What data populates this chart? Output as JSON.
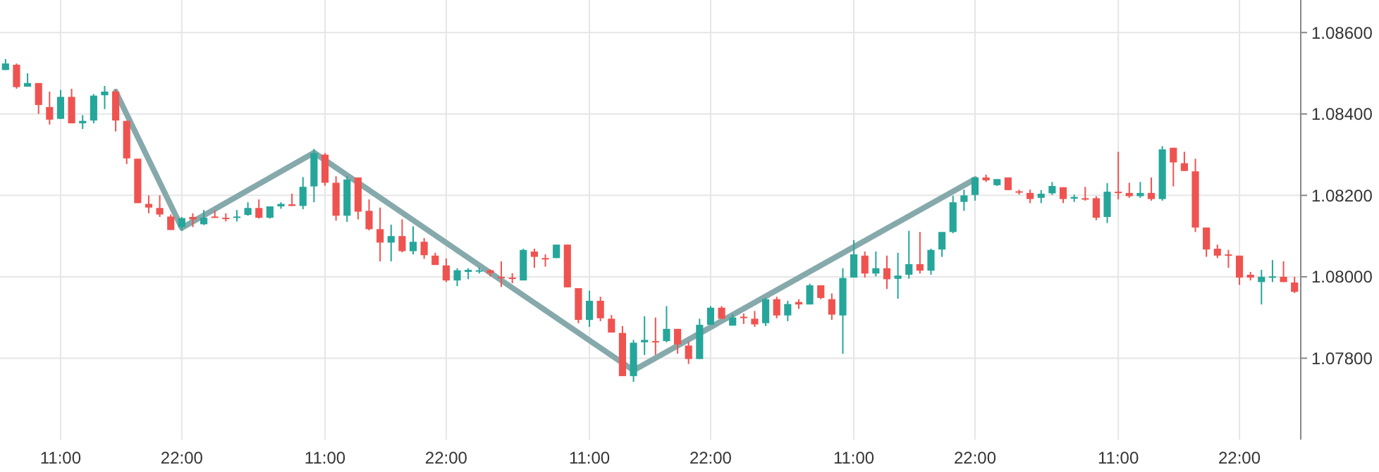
{
  "chart_data": {
    "type": "candlestick",
    "categories": [
      null,
      null,
      null,
      null,
      null,
      "11:00",
      null,
      null,
      null,
      null,
      null,
      null,
      null,
      null,
      null,
      null,
      "22:00",
      null,
      null,
      null,
      null,
      null,
      null,
      null,
      null,
      null,
      null,
      null,
      null,
      "11:00",
      null,
      null,
      null,
      null,
      null,
      null,
      null,
      null,
      null,
      null,
      "22:00",
      null,
      null,
      null,
      null,
      null,
      null,
      null,
      null,
      null,
      null,
      null,
      null,
      "11:00",
      null,
      null,
      null,
      null,
      null,
      null,
      null,
      null,
      null,
      null,
      "22:00",
      null,
      null,
      null,
      null,
      null,
      null,
      null,
      null,
      null,
      null,
      null,
      null,
      "11:00",
      null,
      null,
      null,
      null,
      null,
      null,
      null,
      null,
      null,
      null,
      "22:00",
      null,
      null,
      null,
      null,
      null,
      null,
      null,
      null,
      null,
      null,
      null,
      null,
      "11:00",
      null,
      null,
      null,
      null,
      null,
      null,
      null,
      null,
      null,
      null,
      "22:00",
      null,
      null,
      null,
      null,
      null
    ],
    "ohlc": [
      [
        1.08508,
        1.08535,
        1.08508,
        1.08524
      ],
      [
        1.08521,
        1.08524,
        1.08462,
        1.08466
      ],
      [
        1.08467,
        1.085,
        1.08467,
        1.08476
      ],
      [
        1.08476,
        1.08476,
        1.084,
        1.08422
      ],
      [
        1.08417,
        1.08455,
        1.08374,
        1.08386
      ],
      [
        1.08388,
        1.08459,
        1.08388,
        1.08442
      ],
      [
        1.08442,
        1.08462,
        1.08377,
        1.08377
      ],
      [
        1.08377,
        1.08397,
        1.08363,
        1.08383
      ],
      [
        1.08384,
        1.08449,
        1.08377,
        1.08445
      ],
      [
        1.08446,
        1.08469,
        1.08412,
        1.08455
      ],
      [
        1.08455,
        1.08459,
        1.08357,
        1.08384
      ],
      [
        1.08383,
        1.08383,
        1.08277,
        1.08291
      ],
      [
        1.0829,
        1.0829,
        1.08181,
        1.08181
      ],
      [
        1.08179,
        1.082,
        1.08156,
        1.0817
      ],
      [
        1.08169,
        1.082,
        1.08147,
        1.08153
      ],
      [
        1.08148,
        1.08153,
        1.08115,
        1.08115
      ],
      [
        1.08122,
        1.08147,
        1.08113,
        1.08144
      ],
      [
        1.08147,
        1.08156,
        1.08122,
        1.08141
      ],
      [
        1.08129,
        1.08164,
        1.08127,
        1.08145
      ],
      [
        1.08148,
        1.08163,
        1.08146,
        1.08146
      ],
      [
        1.08145,
        1.08156,
        1.08136,
        1.08143
      ],
      [
        1.08146,
        1.08164,
        1.08136,
        1.08148
      ],
      [
        1.08152,
        1.08183,
        1.0815,
        1.08169
      ],
      [
        1.08169,
        1.0819,
        1.08143,
        1.08145
      ],
      [
        1.08145,
        1.08173,
        1.08143,
        1.08173
      ],
      [
        1.08173,
        1.08183,
        1.08167,
        1.08179
      ],
      [
        1.08178,
        1.08204,
        1.08174,
        1.08174
      ],
      [
        1.08174,
        1.08245,
        1.08166,
        1.08221
      ],
      [
        1.08222,
        1.08314,
        1.08183,
        1.08304
      ],
      [
        1.083,
        1.08304,
        1.08224,
        1.08231
      ],
      [
        1.08231,
        1.08247,
        1.08138,
        1.0815
      ],
      [
        1.0815,
        1.08247,
        1.08135,
        1.08239
      ],
      [
        1.08244,
        1.08244,
        1.08141,
        1.0816
      ],
      [
        1.08162,
        1.0819,
        1.08114,
        1.08117
      ],
      [
        1.08117,
        1.0817,
        1.08038,
        1.08084
      ],
      [
        1.08084,
        1.08128,
        1.08038,
        1.081
      ],
      [
        1.081,
        1.08141,
        1.0806,
        1.08063
      ],
      [
        1.08063,
        1.08124,
        1.08055,
        1.08086
      ],
      [
        1.08086,
        1.08095,
        1.08044,
        1.08053
      ],
      [
        1.08052,
        1.08059,
        1.08029,
        1.08029
      ],
      [
        1.08028,
        1.08045,
        1.07987,
        1.07991
      ],
      [
        1.07991,
        1.08021,
        1.07977,
        1.08016
      ],
      [
        1.08012,
        1.08021,
        1.07994,
        1.08017
      ],
      [
        1.08013,
        1.08023,
        1.08008,
        1.08016
      ],
      [
        1.08016,
        1.08018,
        1.08001,
        1.08009
      ],
      [
        1.08,
        1.08038,
        1.07975,
        1.07998
      ],
      [
        1.07998,
        1.08009,
        1.07984,
        1.07995
      ],
      [
        1.07991,
        1.08069,
        1.07991,
        1.08066
      ],
      [
        1.08062,
        1.08069,
        1.08022,
        1.08049
      ],
      [
        1.08046,
        1.08055,
        1.08025,
        1.08044
      ],
      [
        1.08046,
        1.08079,
        1.08046,
        1.08079
      ],
      [
        1.08079,
        1.08079,
        1.07974,
        1.07974
      ],
      [
        1.07972,
        1.07972,
        1.07886,
        1.07894
      ],
      [
        1.07894,
        1.07966,
        1.07877,
        1.07941
      ],
      [
        1.07941,
        1.07951,
        1.07891,
        1.07898
      ],
      [
        1.07897,
        1.07906,
        1.07863,
        1.07863
      ],
      [
        1.07862,
        1.07879,
        1.07756,
        1.07756
      ],
      [
        1.07756,
        1.07845,
        1.07742,
        1.07838
      ],
      [
        1.07839,
        1.07903,
        1.07808,
        1.07845
      ],
      [
        1.07842,
        1.079,
        1.07808,
        1.0784
      ],
      [
        1.07842,
        1.07928,
        1.07839,
        1.07872
      ],
      [
        1.07872,
        1.07872,
        1.07811,
        1.07834
      ],
      [
        1.07831,
        1.07841,
        1.07786,
        1.07798
      ],
      [
        1.07798,
        1.07897,
        1.07798,
        1.07882
      ],
      [
        1.07882,
        1.07928,
        1.07882,
        1.07924
      ],
      [
        1.07924,
        1.07928,
        1.07897,
        1.07897
      ],
      [
        1.0788,
        1.07908,
        1.0788,
        1.079
      ],
      [
        1.07902,
        1.0791,
        1.07884,
        1.07899
      ],
      [
        1.07897,
        1.07916,
        1.07877,
        1.07883
      ],
      [
        1.07886,
        1.07948,
        1.07879,
        1.07945
      ],
      [
        1.07945,
        1.07951,
        1.07898,
        1.07905
      ],
      [
        1.07905,
        1.07941,
        1.07891,
        1.07933
      ],
      [
        1.07938,
        1.07945,
        1.07921,
        1.07932
      ],
      [
        1.07932,
        1.07983,
        1.07932,
        1.07979
      ],
      [
        1.07979,
        1.07979,
        1.07945,
        1.07948
      ],
      [
        1.07945,
        1.07959,
        1.07894,
        1.07907
      ],
      [
        1.07905,
        1.08021,
        1.07811,
        1.07997
      ],
      [
        1.07998,
        1.0809,
        1.07998,
        1.08055
      ],
      [
        1.08052,
        1.08062,
        1.07998,
        1.08008
      ],
      [
        1.08008,
        1.08062,
        1.08001,
        1.08021
      ],
      [
        1.08021,
        1.08052,
        1.0797,
        1.07994
      ],
      [
        1.07995,
        1.08059,
        1.07946,
        1.08003
      ],
      [
        1.08005,
        1.08113,
        1.07995,
        1.08031
      ],
      [
        1.08031,
        1.0811,
        1.08008,
        1.08015
      ],
      [
        1.08015,
        1.08069,
        1.08005,
        1.08066
      ],
      [
        1.08067,
        1.0811,
        1.08049,
        1.0811
      ],
      [
        1.0811,
        1.08199,
        1.08107,
        1.08183
      ],
      [
        1.08184,
        1.08214,
        1.08162,
        1.082
      ],
      [
        1.08201,
        1.08244,
        1.08187,
        1.08244
      ],
      [
        1.08244,
        1.08251,
        1.08233,
        1.08237
      ],
      [
        1.08225,
        1.0824,
        1.08223,
        1.0824
      ],
      [
        1.08244,
        1.08244,
        1.08213,
        1.08213
      ],
      [
        1.0821,
        1.08214,
        1.08202,
        1.08207
      ],
      [
        1.08206,
        1.08214,
        1.08181,
        1.08191
      ],
      [
        1.08194,
        1.08213,
        1.08181,
        1.08204
      ],
      [
        1.08205,
        1.08233,
        1.08201,
        1.08223
      ],
      [
        1.0822,
        1.0822,
        1.08181,
        1.08191
      ],
      [
        1.08192,
        1.08202,
        1.08184,
        1.08196
      ],
      [
        1.08193,
        1.08221,
        1.08187,
        1.08191
      ],
      [
        1.08193,
        1.08198,
        1.08139,
        1.08145
      ],
      [
        1.08147,
        1.0823,
        1.08132,
        1.08209
      ],
      [
        1.08209,
        1.08307,
        1.0819,
        1.08207
      ],
      [
        1.08206,
        1.08231,
        1.08194,
        1.08198
      ],
      [
        1.08198,
        1.08233,
        1.08194,
        1.08206
      ],
      [
        1.08206,
        1.08244,
        1.08187,
        1.08191
      ],
      [
        1.08191,
        1.08321,
        1.08187,
        1.08313
      ],
      [
        1.08317,
        1.08317,
        1.08222,
        1.08281
      ],
      [
        1.08279,
        1.08307,
        1.0826,
        1.0826
      ],
      [
        1.08259,
        1.0829,
        1.0811,
        1.08121
      ],
      [
        1.08121,
        1.08121,
        1.08049,
        1.08067
      ],
      [
        1.08069,
        1.08079,
        1.08046,
        1.08052
      ],
      [
        1.08055,
        1.08066,
        1.08022,
        1.08053
      ],
      [
        1.08052,
        1.08052,
        1.0798,
        1.07998
      ],
      [
        1.08005,
        1.08012,
        1.07991,
        1.07998
      ],
      [
        1.07987,
        1.08017,
        1.07932,
        1.08
      ],
      [
        1.07999,
        1.08041,
        1.07987,
        1.08001
      ],
      [
        1.08,
        1.08038,
        1.07987,
        1.07987
      ],
      [
        1.07986,
        1.08,
        1.0796,
        1.07963
      ]
    ],
    "series": [
      {
        "type": "line",
        "color": "#86a9ab",
        "values": [
          null,
          null,
          null,
          null,
          null,
          null,
          null,
          null,
          null,
          null,
          1.08455,
          null,
          null,
          null,
          null,
          null,
          1.0812,
          null,
          null,
          null,
          null,
          null,
          null,
          null,
          null,
          null,
          null,
          null,
          1.08305,
          null,
          null,
          null,
          null,
          null,
          null,
          null,
          null,
          null,
          null,
          null,
          null,
          null,
          null,
          null,
          null,
          null,
          null,
          null,
          null,
          null,
          null,
          null,
          null,
          null,
          null,
          null,
          null,
          1.0777,
          null,
          null,
          null,
          null,
          null,
          null,
          null,
          null,
          null,
          null,
          null,
          null,
          null,
          null,
          null,
          null,
          null,
          null,
          null,
          null,
          null,
          null,
          null,
          null,
          null,
          null,
          null,
          null,
          null,
          null,
          1.0824,
          null,
          null,
          null,
          null,
          null,
          null,
          null,
          null,
          null,
          null,
          null,
          null,
          null,
          null,
          null,
          null,
          null,
          null,
          null,
          null,
          null,
          null,
          null,
          null,
          null,
          null,
          null,
          null,
          null
        ]
      }
    ],
    "ylim": [
      1.076,
      1.0868
    ],
    "yticks": [
      {
        "value": 1.078,
        "label": "1.07800"
      },
      {
        "value": 1.08,
        "label": "1.08000"
      },
      {
        "value": 1.082,
        "label": "1.08200"
      },
      {
        "value": 1.084,
        "label": "1.08400"
      },
      {
        "value": 1.086,
        "label": "1.08600"
      }
    ],
    "grid": true
  }
}
